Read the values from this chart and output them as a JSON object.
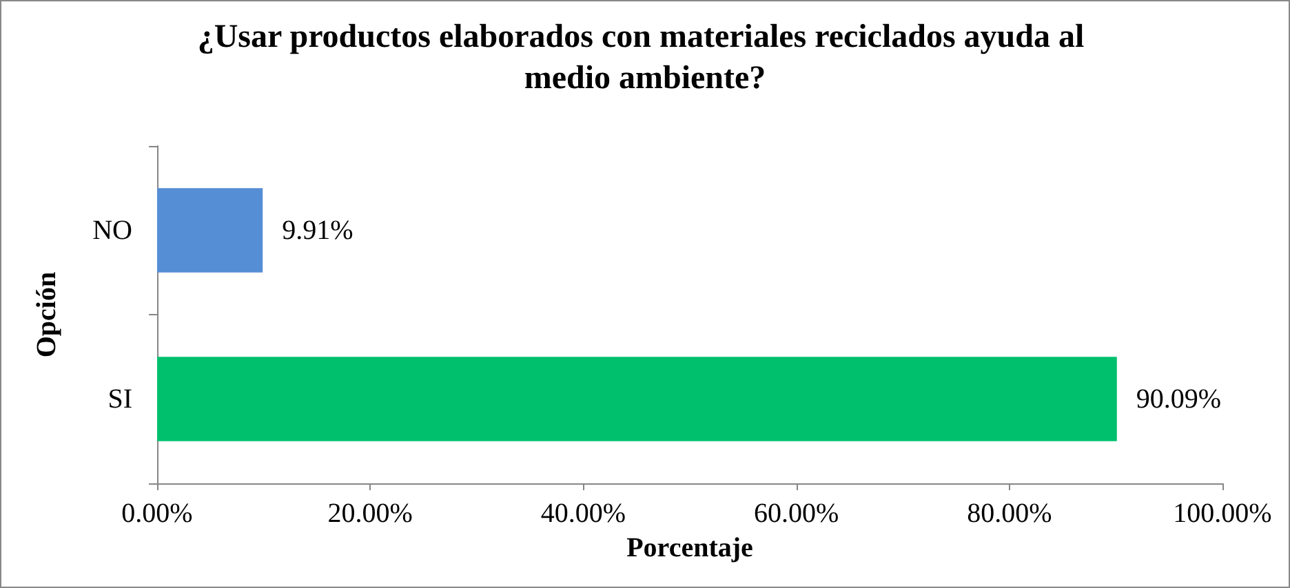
{
  "chart_data": {
    "type": "bar",
    "orientation": "horizontal",
    "title": "¿Usar productos elaborados con materiales reciclados ayuda al medio ambiente?",
    "xlabel": "Porcentaje",
    "ylabel": "Opción",
    "categories": [
      "NO",
      "SI"
    ],
    "values": [
      9.91,
      90.09
    ],
    "colors": [
      "#558ed5",
      "#00c06e"
    ],
    "value_labels": [
      "9.91%",
      "90.09%"
    ],
    "xlim": [
      0,
      100
    ],
    "xticks": [
      {
        "value": 0,
        "label": "0.00%"
      },
      {
        "value": 20,
        "label": "20.00%"
      },
      {
        "value": 40,
        "label": "40.00%"
      },
      {
        "value": 60,
        "label": "60.00%"
      },
      {
        "value": 80,
        "label": "80.00%"
      },
      {
        "value": 100,
        "label": "100.00%"
      }
    ],
    "grid": false
  }
}
